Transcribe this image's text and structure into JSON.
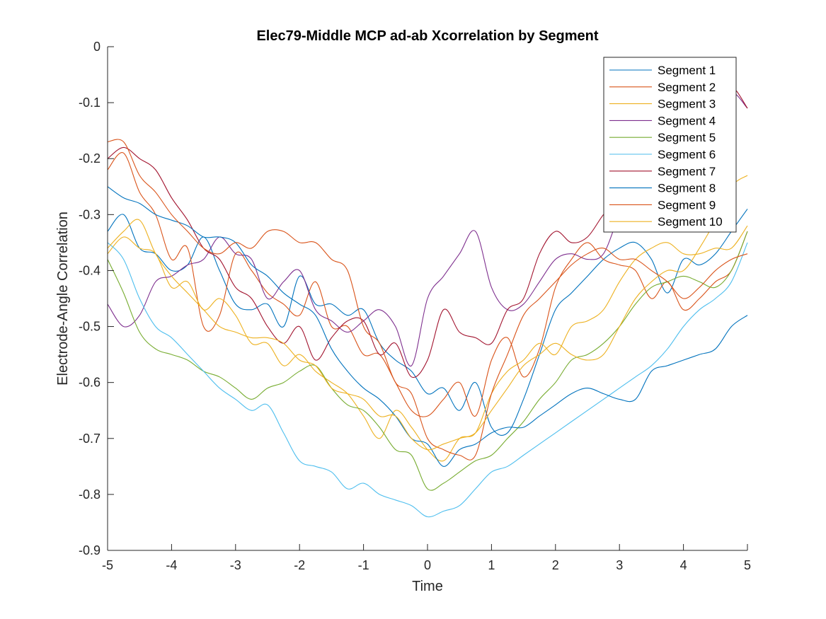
{
  "chart_data": {
    "type": "line",
    "title": "Elec79-Middle MCP ad-ab Xcorrelation by Segment",
    "xlabel": "Time",
    "ylabel": "Electrode-Angle Correlation",
    "xlim": [
      -5,
      5
    ],
    "ylim": [
      -0.9,
      0
    ],
    "xticks": [
      -5,
      -4,
      -3,
      -2,
      -1,
      0,
      1,
      2,
      3,
      4,
      5
    ],
    "yticks": [
      0,
      -0.1,
      -0.2,
      -0.3,
      -0.4,
      -0.5,
      -0.6,
      -0.7,
      -0.8,
      -0.9
    ],
    "grid": false,
    "legend_position": "top-right",
    "x": [
      -5,
      -4.75,
      -4.5,
      -4.25,
      -4,
      -3.75,
      -3.5,
      -3.25,
      -3,
      -2.75,
      -2.5,
      -2.25,
      -2,
      -1.75,
      -1.5,
      -1.25,
      -1,
      -0.75,
      -0.5,
      -0.25,
      0,
      0.25,
      0.5,
      0.75,
      1,
      1.25,
      1.5,
      1.75,
      2,
      2.25,
      2.5,
      2.75,
      3,
      3.25,
      3.5,
      3.75,
      4,
      4.25,
      4.5,
      4.75,
      5
    ],
    "series": [
      {
        "name": "Segment 1",
        "color": "#0072BD",
        "values": [
          -0.33,
          -0.3,
          -0.36,
          -0.37,
          -0.4,
          -0.39,
          -0.34,
          -0.4,
          -0.46,
          -0.47,
          -0.46,
          -0.5,
          -0.41,
          -0.46,
          -0.46,
          -0.48,
          -0.47,
          -0.53,
          -0.56,
          -0.58,
          -0.62,
          -0.61,
          -0.65,
          -0.6,
          -0.68,
          -0.69,
          -0.63,
          -0.55,
          -0.47,
          -0.44,
          -0.41,
          -0.38,
          -0.36,
          -0.35,
          -0.38,
          -0.44,
          -0.38,
          -0.39,
          -0.37,
          -0.33,
          -0.29
        ]
      },
      {
        "name": "Segment 2",
        "color": "#D95319",
        "values": [
          -0.22,
          -0.19,
          -0.26,
          -0.3,
          -0.38,
          -0.36,
          -0.5,
          -0.48,
          -0.37,
          -0.4,
          -0.44,
          -0.46,
          -0.48,
          -0.42,
          -0.5,
          -0.5,
          -0.55,
          -0.55,
          -0.6,
          -0.65,
          -0.66,
          -0.63,
          -0.6,
          -0.66,
          -0.56,
          -0.52,
          -0.59,
          -0.54,
          -0.43,
          -0.38,
          -0.35,
          -0.38,
          -0.39,
          -0.4,
          -0.45,
          -0.42,
          -0.47,
          -0.45,
          -0.42,
          -0.4,
          -0.33
        ]
      },
      {
        "name": "Segment 3",
        "color": "#EDB120",
        "values": [
          -0.37,
          -0.34,
          -0.36,
          -0.37,
          -0.43,
          -0.42,
          -0.47,
          -0.45,
          -0.48,
          -0.53,
          -0.53,
          -0.57,
          -0.55,
          -0.58,
          -0.6,
          -0.62,
          -0.66,
          -0.7,
          -0.65,
          -0.68,
          -0.72,
          -0.74,
          -0.7,
          -0.69,
          -0.62,
          -0.58,
          -0.56,
          -0.53,
          -0.55,
          -0.5,
          -0.49,
          -0.47,
          -0.42,
          -0.38,
          -0.36,
          -0.35,
          -0.37,
          -0.37,
          -0.36,
          -0.36,
          -0.32
        ]
      },
      {
        "name": "Segment 4",
        "color": "#7E2F8E",
        "values": [
          -0.46,
          -0.5,
          -0.48,
          -0.42,
          -0.41,
          -0.39,
          -0.38,
          -0.34,
          -0.37,
          -0.38,
          -0.45,
          -0.42,
          -0.4,
          -0.47,
          -0.49,
          -0.51,
          -0.49,
          -0.47,
          -0.5,
          -0.57,
          -0.45,
          -0.41,
          -0.37,
          -0.33,
          -0.43,
          -0.47,
          -0.46,
          -0.42,
          -0.38,
          -0.37,
          -0.38,
          -0.37,
          -0.3,
          -0.25,
          -0.22,
          -0.19,
          -0.16,
          -0.12,
          -0.1,
          -0.08,
          -0.11
        ]
      },
      {
        "name": "Segment 5",
        "color": "#77AC30",
        "values": [
          -0.38,
          -0.44,
          -0.51,
          -0.54,
          -0.55,
          -0.56,
          -0.58,
          -0.59,
          -0.61,
          -0.63,
          -0.61,
          -0.6,
          -0.58,
          -0.57,
          -0.61,
          -0.64,
          -0.65,
          -0.68,
          -0.72,
          -0.73,
          -0.79,
          -0.78,
          -0.76,
          -0.74,
          -0.73,
          -0.7,
          -0.67,
          -0.63,
          -0.6,
          -0.56,
          -0.55,
          -0.53,
          -0.5,
          -0.46,
          -0.43,
          -0.42,
          -0.41,
          -0.42,
          -0.43,
          -0.4,
          -0.33
        ]
      },
      {
        "name": "Segment 6",
        "color": "#4DBEEE",
        "values": [
          -0.35,
          -0.38,
          -0.45,
          -0.5,
          -0.52,
          -0.55,
          -0.58,
          -0.61,
          -0.63,
          -0.65,
          -0.64,
          -0.69,
          -0.74,
          -0.75,
          -0.76,
          -0.79,
          -0.78,
          -0.8,
          -0.81,
          -0.82,
          -0.84,
          -0.83,
          -0.82,
          -0.79,
          -0.76,
          -0.75,
          -0.73,
          -0.71,
          -0.69,
          -0.67,
          -0.65,
          -0.63,
          -0.61,
          -0.59,
          -0.57,
          -0.54,
          -0.5,
          -0.47,
          -0.45,
          -0.42,
          -0.35
        ]
      },
      {
        "name": "Segment 7",
        "color": "#A2142F",
        "values": [
          -0.2,
          -0.18,
          -0.2,
          -0.22,
          -0.27,
          -0.31,
          -0.36,
          -0.38,
          -0.43,
          -0.45,
          -0.5,
          -0.53,
          -0.5,
          -0.56,
          -0.52,
          -0.49,
          -0.49,
          -0.55,
          -0.53,
          -0.59,
          -0.56,
          -0.47,
          -0.51,
          -0.52,
          -0.53,
          -0.47,
          -0.45,
          -0.37,
          -0.33,
          -0.35,
          -0.34,
          -0.3,
          -0.27,
          -0.23,
          -0.2,
          -0.16,
          -0.13,
          -0.1,
          -0.08,
          -0.07,
          -0.11
        ]
      },
      {
        "name": "Segment 8",
        "color": "#0072BD",
        "values": [
          -0.25,
          -0.27,
          -0.28,
          -0.3,
          -0.31,
          -0.32,
          -0.34,
          -0.34,
          -0.35,
          -0.39,
          -0.41,
          -0.44,
          -0.46,
          -0.48,
          -0.54,
          -0.58,
          -0.61,
          -0.63,
          -0.66,
          -0.7,
          -0.71,
          -0.75,
          -0.72,
          -0.71,
          -0.69,
          -0.68,
          -0.68,
          -0.66,
          -0.64,
          -0.62,
          -0.61,
          -0.62,
          -0.63,
          -0.63,
          -0.58,
          -0.57,
          -0.56,
          -0.55,
          -0.54,
          -0.5,
          -0.48
        ]
      },
      {
        "name": "Segment 9",
        "color": "#D95319",
        "values": [
          -0.17,
          -0.17,
          -0.23,
          -0.26,
          -0.3,
          -0.33,
          -0.36,
          -0.37,
          -0.35,
          -0.36,
          -0.33,
          -0.33,
          -0.35,
          -0.35,
          -0.38,
          -0.4,
          -0.5,
          -0.53,
          -0.6,
          -0.62,
          -0.7,
          -0.72,
          -0.73,
          -0.73,
          -0.62,
          -0.55,
          -0.48,
          -0.45,
          -0.42,
          -0.39,
          -0.37,
          -0.36,
          -0.38,
          -0.38,
          -0.4,
          -0.42,
          -0.45,
          -0.43,
          -0.4,
          -0.38,
          -0.37
        ]
      },
      {
        "name": "Segment 10",
        "color": "#EDB120",
        "values": [
          -0.36,
          -0.33,
          -0.31,
          -0.37,
          -0.41,
          -0.44,
          -0.47,
          -0.5,
          -0.51,
          -0.52,
          -0.52,
          -0.53,
          -0.56,
          -0.57,
          -0.61,
          -0.62,
          -0.63,
          -0.66,
          -0.66,
          -0.7,
          -0.72,
          -0.71,
          -0.7,
          -0.69,
          -0.65,
          -0.61,
          -0.57,
          -0.55,
          -0.53,
          -0.55,
          -0.56,
          -0.55,
          -0.5,
          -0.45,
          -0.42,
          -0.4,
          -0.4,
          -0.36,
          -0.31,
          -0.25,
          -0.23
        ]
      }
    ]
  }
}
